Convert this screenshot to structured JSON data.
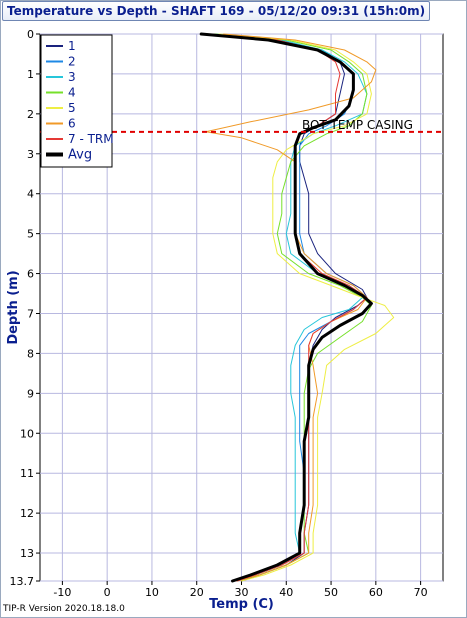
{
  "window": {
    "version": "TIP-R Version 2020.18.18.0"
  },
  "colors": {
    "grid": "#b8b8e0",
    "annotation_line": "#e00000"
  },
  "chart_data": {
    "type": "line",
    "title": "Temperature vs Depth - SHAFT 169 - 05/12/20 09:31 (15h:0m)",
    "xlabel": "Temp (C)",
    "ylabel": "Depth (m)",
    "xlim": [
      -15,
      75
    ],
    "ylim": [
      0,
      13.7
    ],
    "y_inverted": true,
    "grid": true,
    "legend_position": "top-left",
    "xticks": [
      -10,
      0,
      10,
      20,
      30,
      40,
      50,
      60,
      70
    ],
    "xtick_labels": [
      "-10",
      "0",
      "10",
      "20",
      "30",
      "40",
      "50",
      "60",
      "70"
    ],
    "yticks": [
      0,
      1,
      2,
      3,
      4,
      5,
      6,
      7,
      8,
      9,
      10,
      11,
      12,
      13,
      13.7
    ],
    "ytick_labels": [
      "0",
      "1",
      "2",
      "3",
      "4",
      "5",
      "6",
      "7",
      "8",
      "9",
      "10",
      "11",
      "12",
      "13",
      "13.7"
    ],
    "annotations": [
      {
        "text": "BOT TEMP CASING",
        "y": 2.45,
        "style": "dashed",
        "color": "#e00000"
      }
    ],
    "series": [
      {
        "name": "1",
        "color": "#1a237e",
        "width": 1,
        "points": [
          [
            22,
            0
          ],
          [
            38,
            0.15
          ],
          [
            48,
            0.4
          ],
          [
            52,
            0.7
          ],
          [
            53,
            1.0
          ],
          [
            52,
            1.5
          ],
          [
            51,
            2.0
          ],
          [
            47,
            2.3
          ],
          [
            44,
            2.5
          ],
          [
            43,
            2.8
          ],
          [
            43,
            3.2
          ],
          [
            44,
            3.6
          ],
          [
            45,
            4.0
          ],
          [
            45,
            4.5
          ],
          [
            45,
            5.0
          ],
          [
            47,
            5.5
          ],
          [
            51,
            6.0
          ],
          [
            57,
            6.4
          ],
          [
            58,
            6.6
          ],
          [
            56,
            6.8
          ],
          [
            51,
            7.1
          ],
          [
            48,
            7.4
          ],
          [
            46,
            7.8
          ],
          [
            45,
            8.3
          ],
          [
            45,
            9.0
          ],
          [
            45,
            9.6
          ],
          [
            45,
            10.2
          ],
          [
            45,
            11.0
          ],
          [
            45,
            11.8
          ],
          [
            44,
            12.5
          ],
          [
            44,
            13.0
          ],
          [
            40,
            13.3
          ],
          [
            34,
            13.55
          ],
          [
            30,
            13.7
          ]
        ]
      },
      {
        "name": "2",
        "color": "#1e88e5",
        "width": 1,
        "points": [
          [
            23,
            0
          ],
          [
            38,
            0.15
          ],
          [
            47,
            0.4
          ],
          [
            52,
            0.7
          ],
          [
            55,
            1.0
          ],
          [
            55,
            1.5
          ],
          [
            53,
            2.0
          ],
          [
            49,
            2.3
          ],
          [
            45,
            2.5
          ],
          [
            43,
            2.8
          ],
          [
            43,
            3.2
          ],
          [
            43,
            3.6
          ],
          [
            43,
            4.0
          ],
          [
            43,
            4.5
          ],
          [
            43,
            5.0
          ],
          [
            44,
            5.5
          ],
          [
            49,
            6.0
          ],
          [
            55,
            6.3
          ],
          [
            58,
            6.6
          ],
          [
            55,
            6.9
          ],
          [
            50,
            7.2
          ],
          [
            45,
            7.5
          ],
          [
            43,
            7.8
          ],
          [
            43,
            8.3
          ],
          [
            43,
            9.0
          ],
          [
            43,
            9.6
          ],
          [
            43,
            10.2
          ],
          [
            44,
            11.0
          ],
          [
            44,
            11.8
          ],
          [
            43,
            12.5
          ],
          [
            43,
            13.0
          ],
          [
            39,
            13.3
          ],
          [
            33,
            13.55
          ],
          [
            29,
            13.7
          ]
        ]
      },
      {
        "name": "3",
        "color": "#26c6da",
        "width": 1,
        "points": [
          [
            24,
            0
          ],
          [
            39,
            0.15
          ],
          [
            48,
            0.4
          ],
          [
            53,
            0.7
          ],
          [
            56,
            1.0
          ],
          [
            58,
            1.5
          ],
          [
            57,
            2.0
          ],
          [
            51,
            2.3
          ],
          [
            46,
            2.5
          ],
          [
            42,
            2.8
          ],
          [
            41,
            3.2
          ],
          [
            41,
            3.6
          ],
          [
            41,
            4.0
          ],
          [
            41,
            4.5
          ],
          [
            40,
            5.0
          ],
          [
            41,
            5.5
          ],
          [
            47,
            6.0
          ],
          [
            54,
            6.3
          ],
          [
            57,
            6.6
          ],
          [
            54,
            6.9
          ],
          [
            48,
            7.1
          ],
          [
            44,
            7.4
          ],
          [
            42,
            7.8
          ],
          [
            41,
            8.3
          ],
          [
            41,
            9.0
          ],
          [
            42,
            9.6
          ],
          [
            42,
            10.2
          ],
          [
            42,
            11.0
          ],
          [
            42,
            11.8
          ],
          [
            42,
            12.5
          ],
          [
            43,
            13.0
          ],
          [
            39,
            13.3
          ],
          [
            33,
            13.55
          ],
          [
            28,
            13.7
          ]
        ]
      },
      {
        "name": "4",
        "color": "#76e02a",
        "width": 1,
        "points": [
          [
            24,
            0
          ],
          [
            40,
            0.15
          ],
          [
            50,
            0.4
          ],
          [
            54,
            0.7
          ],
          [
            57,
            1.0
          ],
          [
            58,
            1.5
          ],
          [
            57,
            2.0
          ],
          [
            54,
            2.3
          ],
          [
            49,
            2.5
          ],
          [
            44,
            2.8
          ],
          [
            41,
            3.2
          ],
          [
            40,
            3.6
          ],
          [
            39,
            4.0
          ],
          [
            39,
            4.5
          ],
          [
            38,
            5.0
          ],
          [
            39,
            5.5
          ],
          [
            45,
            6.0
          ],
          [
            52,
            6.3
          ],
          [
            57,
            6.6
          ],
          [
            59,
            6.8
          ],
          [
            57,
            7.2
          ],
          [
            52,
            7.6
          ],
          [
            47,
            8.0
          ],
          [
            45,
            8.4
          ],
          [
            44,
            9.0
          ],
          [
            44,
            9.6
          ],
          [
            44,
            10.2
          ],
          [
            44,
            11.0
          ],
          [
            44,
            11.8
          ],
          [
            44,
            12.5
          ],
          [
            45,
            13.0
          ],
          [
            40,
            13.3
          ],
          [
            34,
            13.55
          ],
          [
            29,
            13.7
          ]
        ]
      },
      {
        "name": "5",
        "color": "#eeee44",
        "width": 1,
        "points": [
          [
            25,
            0
          ],
          [
            41,
            0.15
          ],
          [
            51,
            0.4
          ],
          [
            55,
            0.7
          ],
          [
            58,
            1.0
          ],
          [
            59,
            1.5
          ],
          [
            58,
            2.0
          ],
          [
            53,
            2.3
          ],
          [
            46,
            2.5
          ],
          [
            40,
            2.9
          ],
          [
            38,
            3.2
          ],
          [
            37,
            3.6
          ],
          [
            37,
            4.0
          ],
          [
            37,
            4.5
          ],
          [
            37,
            5.0
          ],
          [
            38,
            5.5
          ],
          [
            43,
            6.0
          ],
          [
            50,
            6.3
          ],
          [
            57,
            6.6
          ],
          [
            62,
            6.8
          ],
          [
            64,
            7.1
          ],
          [
            60,
            7.5
          ],
          [
            53,
            7.9
          ],
          [
            49,
            8.3
          ],
          [
            48,
            9.0
          ],
          [
            47,
            9.6
          ],
          [
            47,
            10.2
          ],
          [
            47,
            11.0
          ],
          [
            47,
            11.8
          ],
          [
            46,
            12.5
          ],
          [
            46,
            13.0
          ],
          [
            41,
            13.3
          ],
          [
            35,
            13.55
          ],
          [
            30,
            13.7
          ]
        ]
      },
      {
        "name": "6",
        "color": "#f09a28",
        "width": 1,
        "points": [
          [
            26,
            0
          ],
          [
            42,
            0.15
          ],
          [
            53,
            0.4
          ],
          [
            58,
            0.7
          ],
          [
            60,
            0.9
          ],
          [
            59,
            1.2
          ],
          [
            55,
            1.6
          ],
          [
            45,
            1.9
          ],
          [
            32,
            2.2
          ],
          [
            22,
            2.45
          ],
          [
            30,
            2.6
          ],
          [
            38,
            2.9
          ],
          [
            42,
            3.2
          ],
          [
            42,
            3.6
          ],
          [
            42,
            4.0
          ],
          [
            42,
            4.5
          ],
          [
            42,
            5.0
          ],
          [
            44,
            5.5
          ],
          [
            49,
            6.0
          ],
          [
            55,
            6.3
          ],
          [
            58,
            6.6
          ],
          [
            56,
            6.9
          ],
          [
            50,
            7.2
          ],
          [
            46,
            7.5
          ],
          [
            45,
            7.8
          ],
          [
            46,
            8.3
          ],
          [
            47,
            9.0
          ],
          [
            46,
            9.6
          ],
          [
            46,
            10.2
          ],
          [
            46,
            11.0
          ],
          [
            46,
            11.8
          ],
          [
            45,
            12.5
          ],
          [
            45,
            13.0
          ],
          [
            40,
            13.3
          ],
          [
            34,
            13.55
          ],
          [
            29,
            13.7
          ]
        ]
      },
      {
        "name": "7 - TRM",
        "color": "#e53935",
        "width": 1,
        "points": [
          [
            23,
            0
          ],
          [
            38,
            0.15
          ],
          [
            47,
            0.4
          ],
          [
            51,
            0.7
          ],
          [
            52,
            1.0
          ],
          [
            51,
            1.5
          ],
          [
            51,
            2.0
          ],
          [
            47,
            2.3
          ],
          [
            43,
            2.5
          ],
          [
            42,
            2.8
          ],
          [
            42,
            3.2
          ],
          [
            42,
            3.6
          ],
          [
            42,
            4.0
          ],
          [
            42,
            4.5
          ],
          [
            42,
            5.0
          ],
          [
            43,
            5.5
          ],
          [
            48,
            6.0
          ],
          [
            54,
            6.3
          ],
          [
            58,
            6.6
          ],
          [
            55,
            6.9
          ],
          [
            50,
            7.2
          ],
          [
            46,
            7.5
          ],
          [
            45,
            7.8
          ],
          [
            45,
            8.3
          ],
          [
            45,
            9.0
          ],
          [
            45,
            9.6
          ],
          [
            45,
            10.2
          ],
          [
            45,
            11.0
          ],
          [
            45,
            11.8
          ],
          [
            44,
            12.5
          ],
          [
            44,
            13.0
          ],
          [
            39,
            13.3
          ],
          [
            33,
            13.55
          ],
          [
            29,
            13.7
          ]
        ]
      },
      {
        "name": "Avg",
        "color": "#000000",
        "width": 3,
        "points": [
          [
            21,
            0
          ],
          [
            36,
            0.15
          ],
          [
            47,
            0.4
          ],
          [
            52,
            0.7
          ],
          [
            55,
            1.0
          ],
          [
            55,
            1.4
          ],
          [
            54,
            1.8
          ],
          [
            51,
            2.15
          ],
          [
            46,
            2.35
          ],
          [
            43,
            2.5
          ],
          [
            42,
            2.8
          ],
          [
            42,
            3.2
          ],
          [
            42,
            3.6
          ],
          [
            42,
            4.0
          ],
          [
            42,
            4.5
          ],
          [
            42,
            5.0
          ],
          [
            43,
            5.5
          ],
          [
            47,
            6.0
          ],
          [
            53,
            6.3
          ],
          [
            57,
            6.55
          ],
          [
            59,
            6.75
          ],
          [
            57,
            7.0
          ],
          [
            52,
            7.3
          ],
          [
            48,
            7.6
          ],
          [
            46,
            7.9
          ],
          [
            45,
            8.3
          ],
          [
            45,
            9.0
          ],
          [
            45,
            9.6
          ],
          [
            44,
            10.2
          ],
          [
            44,
            11.0
          ],
          [
            44,
            11.8
          ],
          [
            43,
            12.5
          ],
          [
            43,
            13.0
          ],
          [
            38,
            13.3
          ],
          [
            32,
            13.55
          ],
          [
            28,
            13.7
          ]
        ]
      }
    ]
  }
}
